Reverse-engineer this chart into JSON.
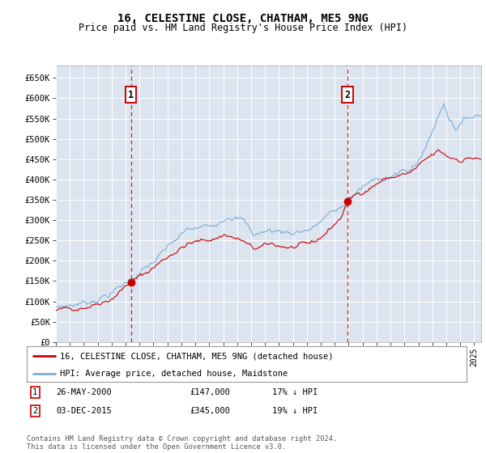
{
  "title": "16, CELESTINE CLOSE, CHATHAM, ME5 9NG",
  "subtitle": "Price paid vs. HM Land Registry's House Price Index (HPI)",
  "ylim": [
    0,
    680000
  ],
  "yticks": [
    0,
    50000,
    100000,
    150000,
    200000,
    250000,
    300000,
    350000,
    400000,
    450000,
    500000,
    550000,
    600000,
    650000
  ],
  "xlim_start": 1995.0,
  "xlim_end": 2025.5,
  "background_color": "#dce4f0",
  "grid_color": "#ffffff",
  "red_line_color": "#cc0000",
  "blue_line_color": "#7aaed6",
  "purchase1": {
    "date_num": 2000.38,
    "price": 147000,
    "label": "1",
    "text": "26-MAY-2000",
    "price_text": "£147,000",
    "hpi_text": "17% ↓ HPI"
  },
  "purchase2": {
    "date_num": 2015.92,
    "price": 345000,
    "label": "2",
    "text": "03-DEC-2015",
    "price_text": "£345,000",
    "hpi_text": "19% ↓ HPI"
  },
  "legend_line1": "16, CELESTINE CLOSE, CHATHAM, ME5 9NG (detached house)",
  "legend_line2": "HPI: Average price, detached house, Maidstone",
  "footer": "Contains HM Land Registry data © Crown copyright and database right 2024.\nThis data is licensed under the Open Government Licence v3.0."
}
